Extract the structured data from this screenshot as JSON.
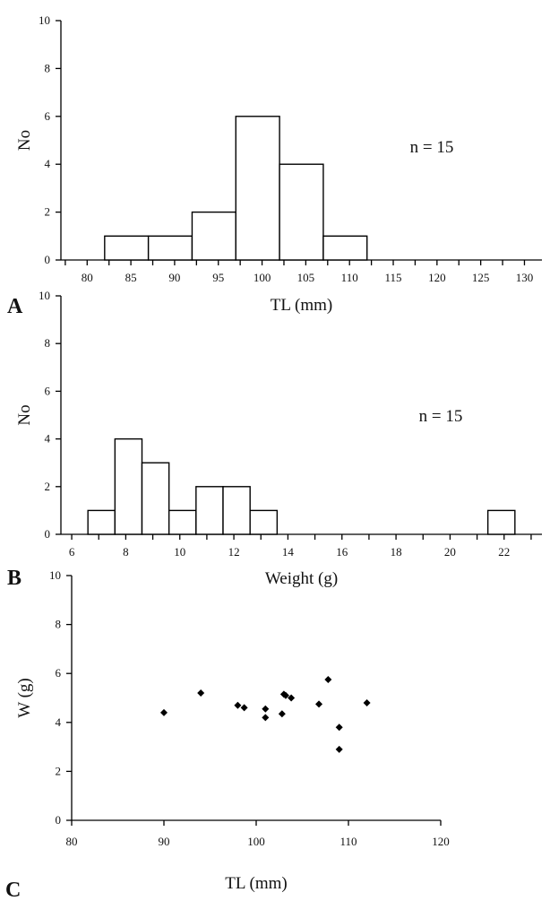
{
  "chart_data": [
    {
      "panel": "A",
      "type": "bar",
      "annotation": "n = 15",
      "xlabel": "TL  (mm)",
      "ylabel": "No",
      "xlim": [
        77,
        132
      ],
      "ylim": [
        0,
        10
      ],
      "x_ticks": [
        80,
        85,
        90,
        95,
        100,
        105,
        110,
        115,
        120,
        125,
        130
      ],
      "y_ticks": [
        0,
        2,
        4,
        6,
        8,
        10
      ],
      "bins": [
        {
          "start": 82,
          "end": 87,
          "count": 1
        },
        {
          "start": 87,
          "end": 92,
          "count": 1
        },
        {
          "start": 92,
          "end": 97,
          "count": 2
        },
        {
          "start": 97,
          "end": 102,
          "count": 6
        },
        {
          "start": 102,
          "end": 107,
          "count": 4
        },
        {
          "start": 107,
          "end": 112,
          "count": 1
        }
      ]
    },
    {
      "panel": "B",
      "type": "bar",
      "annotation": "n = 15",
      "xlabel": "Weight  (g)",
      "ylabel": "No",
      "xlim": [
        5.6,
        23.4
      ],
      "ylim": [
        0,
        10
      ],
      "x_ticks": [
        6,
        8,
        10,
        12,
        14,
        16,
        18,
        20,
        22
      ],
      "y_ticks": [
        0,
        2,
        4,
        6,
        8,
        10
      ],
      "bins": [
        {
          "start": 6.6,
          "end": 7.6,
          "count": 1
        },
        {
          "start": 7.6,
          "end": 8.6,
          "count": 4
        },
        {
          "start": 8.6,
          "end": 9.6,
          "count": 3
        },
        {
          "start": 9.6,
          "end": 10.6,
          "count": 1
        },
        {
          "start": 10.6,
          "end": 11.6,
          "count": 2
        },
        {
          "start": 11.6,
          "end": 12.6,
          "count": 2
        },
        {
          "start": 12.6,
          "end": 13.6,
          "count": 1
        },
        {
          "start": 21.4,
          "end": 22.4,
          "count": 1
        }
      ]
    },
    {
      "panel": "C",
      "type": "scatter",
      "xlabel": "TL (mm)",
      "ylabel": "W (g)",
      "xlim": [
        80,
        120
      ],
      "ylim": [
        0,
        10
      ],
      "x_ticks": [
        80,
        90,
        100,
        110,
        120
      ],
      "y_ticks": [
        0,
        2,
        4,
        6,
        8,
        10
      ],
      "points": [
        {
          "x": 90,
          "y": 4.4
        },
        {
          "x": 94,
          "y": 5.2
        },
        {
          "x": 98,
          "y": 4.7
        },
        {
          "x": 98.7,
          "y": 4.6
        },
        {
          "x": 101,
          "y": 4.55
        },
        {
          "x": 101,
          "y": 4.2
        },
        {
          "x": 102.8,
          "y": 4.35
        },
        {
          "x": 103,
          "y": 5.15
        },
        {
          "x": 103.2,
          "y": 5.1
        },
        {
          "x": 103.8,
          "y": 5.0
        },
        {
          "x": 106.8,
          "y": 4.75
        },
        {
          "x": 107.8,
          "y": 5.75
        },
        {
          "x": 109,
          "y": 3.8
        },
        {
          "x": 109,
          "y": 2.9
        },
        {
          "x": 112,
          "y": 4.8
        }
      ]
    }
  ]
}
